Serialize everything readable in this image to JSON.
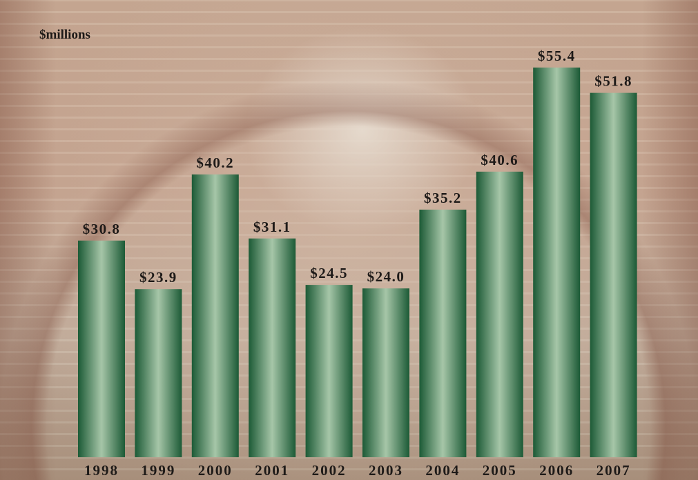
{
  "chart_data": {
    "type": "bar",
    "ylabel": "$millions",
    "categories": [
      "1998",
      "1999",
      "2000",
      "2001",
      "2002",
      "2003",
      "2004",
      "2005",
      "2006",
      "2007"
    ],
    "values": [
      30.8,
      23.9,
      40.2,
      31.1,
      24.5,
      24.0,
      35.2,
      40.6,
      55.4,
      51.8
    ],
    "value_labels": [
      "$30.8",
      "$23.9",
      "$40.2",
      "$31.1",
      "$24.5",
      "$24.0",
      "$35.2",
      "$40.6",
      "$55.4",
      "$51.8"
    ],
    "color": "#1c5a36",
    "ylim": [
      0,
      65
    ]
  }
}
